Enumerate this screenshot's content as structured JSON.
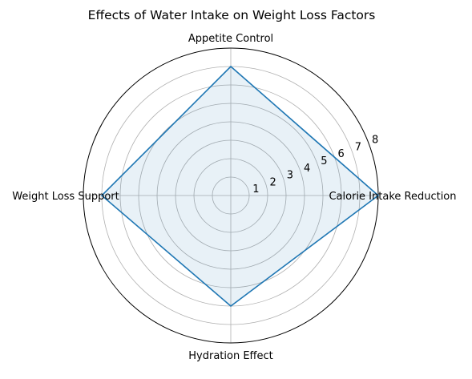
{
  "chart_data": {
    "type": "radar",
    "title": "Effects of Water Intake on Weight Loss Factors",
    "categories": [
      "Calorie Intake Reduction",
      "Appetite Control",
      "Weight Loss Support",
      "Hydration Effect"
    ],
    "series": [
      {
        "values": [
          8,
          7,
          7,
          6
        ]
      }
    ],
    "rlim": [
      0,
      8
    ],
    "rticks": [
      1,
      2,
      3,
      4,
      5,
      6,
      7,
      8
    ],
    "grid": true,
    "colors": {
      "line": "#1f77b4",
      "fill": "#1f77b4",
      "grid": "#b0b0b0",
      "frame": "#000000"
    }
  }
}
